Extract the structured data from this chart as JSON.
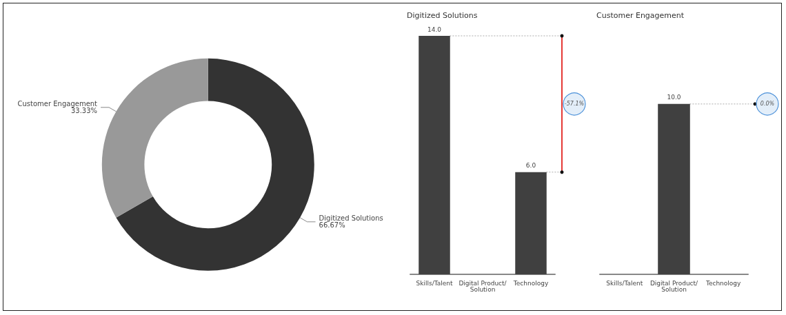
{
  "chart_data": [
    {
      "type": "donut",
      "categories": [
        "Digitized Solutions",
        "Customer Engagement"
      ],
      "values": [
        66.67,
        33.33
      ],
      "colors": [
        "#333333",
        "#999999"
      ],
      "value_labels": [
        "66.67%",
        "33.33%"
      ]
    },
    {
      "type": "bar",
      "title": "Digitized Solutions",
      "categories": [
        "Skills/Talent",
        "Digital Product/Solution",
        "Technology"
      ],
      "values": [
        14,
        null,
        6
      ],
      "color": "#404040",
      "value_labels": [
        "14.0",
        null,
        "6.0"
      ],
      "annotations": [
        "-57.1%"
      ],
      "ref_lines": [
        {
          "axis": "y",
          "value": 14,
          "line_style": "dotted",
          "color": "#aaaaaa"
        },
        {
          "axis": "y",
          "value": 6,
          "line_style": "dotted",
          "color": "#aaaaaa"
        }
      ],
      "tick_labels": "x",
      "grid": false
    },
    {
      "type": "bar",
      "title": "Customer Engagement",
      "categories": [
        "Skills/Talent",
        "Digital Product/Solution",
        "Technology"
      ],
      "values": [
        null,
        10,
        null
      ],
      "color": "#404040",
      "value_labels": [
        null,
        "10.0",
        null
      ],
      "annotations": [
        "0.0%"
      ],
      "ref_lines": [
        {
          "axis": "y",
          "value": 10,
          "line_style": "dotted",
          "color": "#aaaaaa"
        }
      ],
      "tick_labels": "x",
      "grid": false
    }
  ]
}
